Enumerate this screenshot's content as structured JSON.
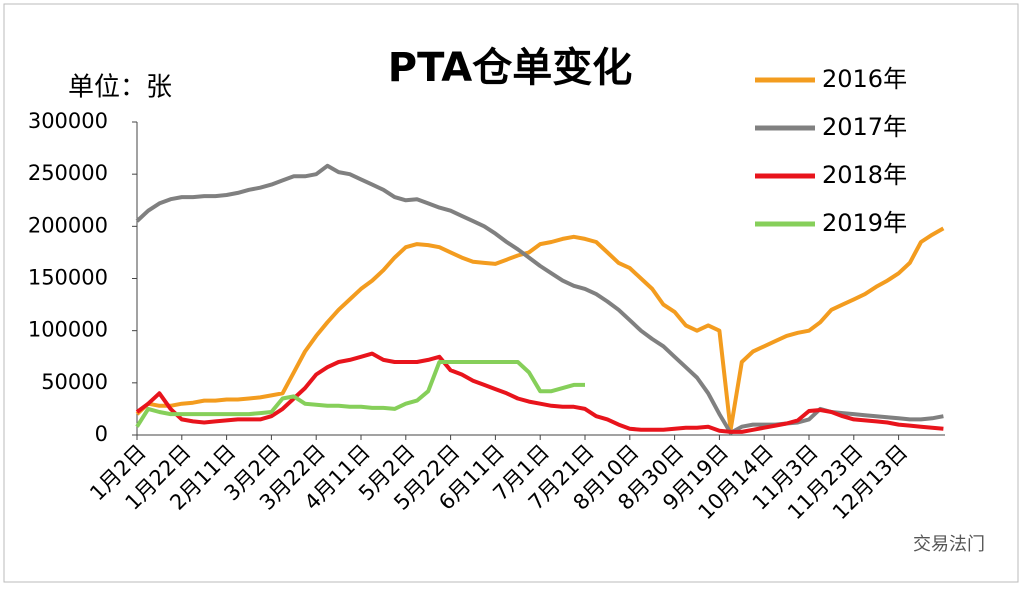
{
  "chart_data": {
    "type": "line",
    "title": "PTA仓单变化",
    "unit_label": "单位：张",
    "watermark": "交易法门",
    "categories": [
      "1月2日",
      null,
      null,
      null,
      "1月22日",
      null,
      null,
      null,
      "2月11日",
      null,
      null,
      null,
      "3月2日",
      null,
      null,
      null,
      "3月22日",
      null,
      null,
      null,
      "4月11日",
      null,
      null,
      null,
      "5月2日",
      null,
      null,
      null,
      "5月22日",
      null,
      null,
      null,
      "6月11日",
      null,
      null,
      null,
      "7月1日",
      null,
      null,
      null,
      "7月21日",
      null,
      null,
      null,
      "8月10日",
      null,
      null,
      null,
      "8月30日",
      null,
      null,
      null,
      "9月19日",
      null,
      null,
      null,
      "10月14日",
      null,
      null,
      null,
      "11月3日",
      null,
      null,
      null,
      "11月23日",
      null,
      null,
      null,
      "12月13日",
      null,
      null,
      null,
      null
    ],
    "series": [
      {
        "name": "2016年",
        "color": "#f39c1f",
        "values": [
          20000,
          30000,
          28000,
          28000,
          30000,
          31000,
          33000,
          33000,
          34000,
          34000,
          35000,
          36000,
          38000,
          40000,
          60000,
          80000,
          95000,
          108000,
          120000,
          130000,
          140000,
          148000,
          158000,
          170000,
          180000,
          183000,
          182000,
          180000,
          175000,
          170000,
          166000,
          165000,
          164000,
          168000,
          172000,
          175000,
          183000,
          185000,
          188000,
          190000,
          188000,
          185000,
          175000,
          165000,
          160000,
          150000,
          140000,
          125000,
          118000,
          105000,
          100000,
          105000,
          100000,
          5000,
          70000,
          80000,
          85000,
          90000,
          95000,
          98000,
          100000,
          108000,
          120000,
          125000,
          130000,
          135000,
          142000,
          148000,
          155000,
          165000,
          185000,
          192000,
          198000
        ]
      },
      {
        "name": "2017年",
        "color": "#808080",
        "values": [
          205000,
          215000,
          222000,
          226000,
          228000,
          228000,
          229000,
          229000,
          230000,
          232000,
          235000,
          237000,
          240000,
          244000,
          248000,
          248000,
          250000,
          258000,
          252000,
          250000,
          245000,
          240000,
          235000,
          228000,
          225000,
          226000,
          222000,
          218000,
          215000,
          210000,
          205000,
          200000,
          193000,
          185000,
          178000,
          170000,
          162000,
          155000,
          148000,
          143000,
          140000,
          135000,
          128000,
          120000,
          110000,
          100000,
          92000,
          85000,
          75000,
          65000,
          55000,
          40000,
          20000,
          2000,
          8000,
          10000,
          10000,
          10000,
          11000,
          12000,
          15000,
          25000,
          22000,
          21000,
          20000,
          19000,
          18000,
          17000,
          16000,
          15000,
          15000,
          16000,
          18000
        ]
      },
      {
        "name": "2018年",
        "color": "#e8141c",
        "values": [
          22000,
          30000,
          40000,
          25000,
          15000,
          13000,
          12000,
          13000,
          14000,
          15000,
          15000,
          15000,
          18000,
          25000,
          35000,
          45000,
          58000,
          65000,
          70000,
          72000,
          75000,
          78000,
          72000,
          70000,
          70000,
          70000,
          72000,
          75000,
          62000,
          58000,
          52000,
          48000,
          44000,
          40000,
          35000,
          32000,
          30000,
          28000,
          27000,
          27000,
          25000,
          18000,
          15000,
          10000,
          6000,
          5000,
          5000,
          5000,
          6000,
          7000,
          7000,
          8000,
          4000,
          3000,
          3000,
          5000,
          7000,
          9000,
          11000,
          14000,
          23000,
          24000,
          22000,
          18000,
          15000,
          14000,
          13000,
          12000,
          10000,
          9000,
          8000,
          7000,
          6000
        ]
      },
      {
        "name": "2019年",
        "color": "#86cf5a",
        "values": [
          8000,
          25000,
          22000,
          20000,
          20000,
          20000,
          20000,
          20000,
          20000,
          20000,
          20000,
          21000,
          22000,
          35000,
          37000,
          30000,
          29000,
          28000,
          28000,
          27000,
          27000,
          26000,
          26000,
          25000,
          30000,
          33000,
          42000,
          70000,
          70000,
          70000,
          70000,
          70000,
          70000,
          70000,
          70000,
          60000,
          42000,
          42000,
          45000,
          48000,
          48000,
          null,
          null,
          null,
          null,
          null,
          null,
          null,
          null,
          null,
          null,
          null,
          null,
          null,
          null,
          null,
          null,
          null,
          null,
          null,
          null,
          null,
          null,
          null,
          null,
          null,
          null,
          null,
          null,
          null,
          null,
          null,
          null
        ]
      }
    ],
    "ylim": [
      0,
      300000
    ],
    "yticks": [
      0,
      50000,
      100000,
      150000,
      200000,
      250000,
      300000
    ],
    "grid": false,
    "legend": "upper right"
  }
}
